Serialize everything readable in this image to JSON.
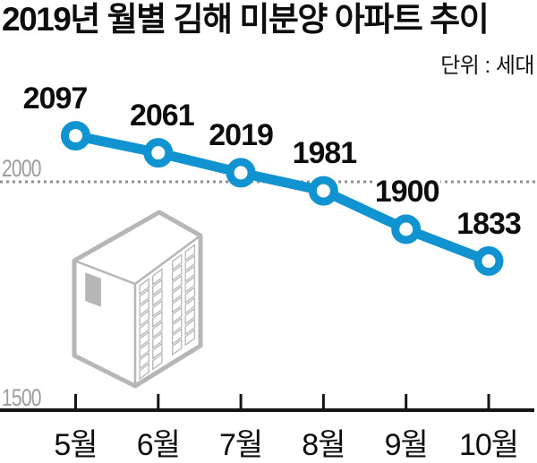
{
  "header": {
    "title": "2019년 월별 김해 미분양 아파트 추이",
    "unit_label": "단위 : 세대"
  },
  "chart_data": {
    "type": "line",
    "title": "2019년 월별 김해 미분양 아파트 추이",
    "unit_label": "단위 : 세대",
    "categories": [
      "5월",
      "6월",
      "7월",
      "8월",
      "9월",
      "10월"
    ],
    "values": [
      2097,
      2061,
      2019,
      1981,
      1900,
      1833
    ],
    "data_labels_shown": true,
    "ylim": [
      1500,
      2150
    ],
    "ytick_labels": [
      "2000",
      "1500"
    ],
    "gridline_value": 2000,
    "baseline_value": 1500,
    "grid_on": true,
    "legend_position": "none",
    "line_color": "#1093d0",
    "marker_style": "open-circle",
    "marker_fill": "#ffffff",
    "gridline_color": "#8f8f8f",
    "axis_line_color": "#161616",
    "axis_text_color": "#9c9c9c",
    "label_text_color": "#0d0d0d"
  },
  "icons": {
    "building": "apartment-building-icon"
  },
  "building_color": "#b6b6b6"
}
